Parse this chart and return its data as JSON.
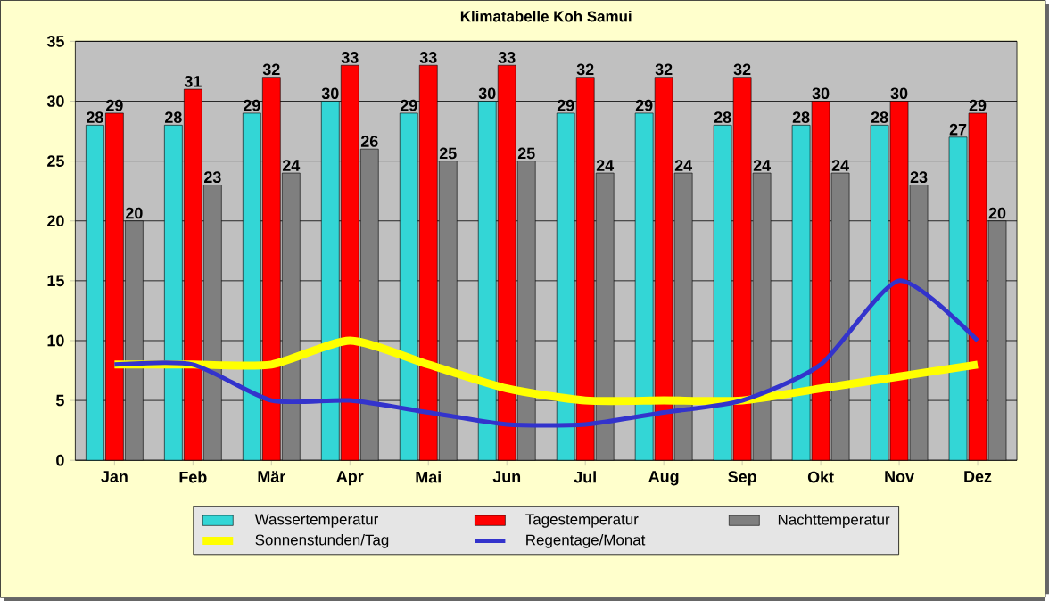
{
  "chart_data": {
    "type": "bar",
    "title": "Klimatabelle Koh Samui",
    "categories": [
      "Jan",
      "Feb",
      "Mär",
      "Apr",
      "Mai",
      "Jun",
      "Jul",
      "Aug",
      "Sep",
      "Okt",
      "Nov",
      "Dez"
    ],
    "series": [
      {
        "name": "Wassertemperatur",
        "color": "#33d6d6",
        "values": [
          28,
          28,
          29,
          30,
          29,
          30,
          29,
          29,
          28,
          28,
          28,
          27
        ],
        "value_labels": [
          "28",
          "28",
          "29",
          "30",
          "29",
          "30",
          "29",
          "29",
          "28",
          "28",
          "28",
          "27"
        ]
      },
      {
        "name": "Tagestemperatur",
        "color": "#ff0000",
        "values": [
          29,
          31,
          32,
          33,
          33,
          33,
          32,
          32,
          32,
          30,
          30,
          29
        ],
        "value_labels": [
          "29",
          "31",
          "32",
          "33",
          "33",
          "33",
          "32",
          "32",
          "32",
          "30",
          "30",
          "29"
        ]
      },
      {
        "name": "Nachttemperatur",
        "color": "#7f7f7f",
        "values": [
          20,
          23,
          24,
          26,
          25,
          25,
          24,
          24,
          24,
          24,
          23,
          20
        ],
        "value_labels": [
          "20",
          "23",
          "24",
          "26",
          "25",
          "25",
          "24",
          "24",
          "24",
          "24",
          "23",
          "20"
        ]
      },
      {
        "name": "Sonnenstunden/Tag",
        "type": "line",
        "color": "#ffff00",
        "values": [
          8,
          8,
          8,
          10,
          8,
          6,
          5,
          5,
          5,
          6,
          7,
          8
        ]
      },
      {
        "name": "Regentage/Monat",
        "type": "line",
        "color": "#3333cc",
        "values": [
          8,
          8,
          5,
          5,
          4,
          3,
          3,
          4,
          5,
          8,
          15,
          10
        ]
      }
    ],
    "ylim": [
      0,
      35
    ],
    "yticks": [
      0,
      5,
      10,
      15,
      20,
      25,
      30,
      35
    ],
    "grid": "y",
    "legend": "bottom",
    "marker": "none",
    "line_style": "solid"
  }
}
